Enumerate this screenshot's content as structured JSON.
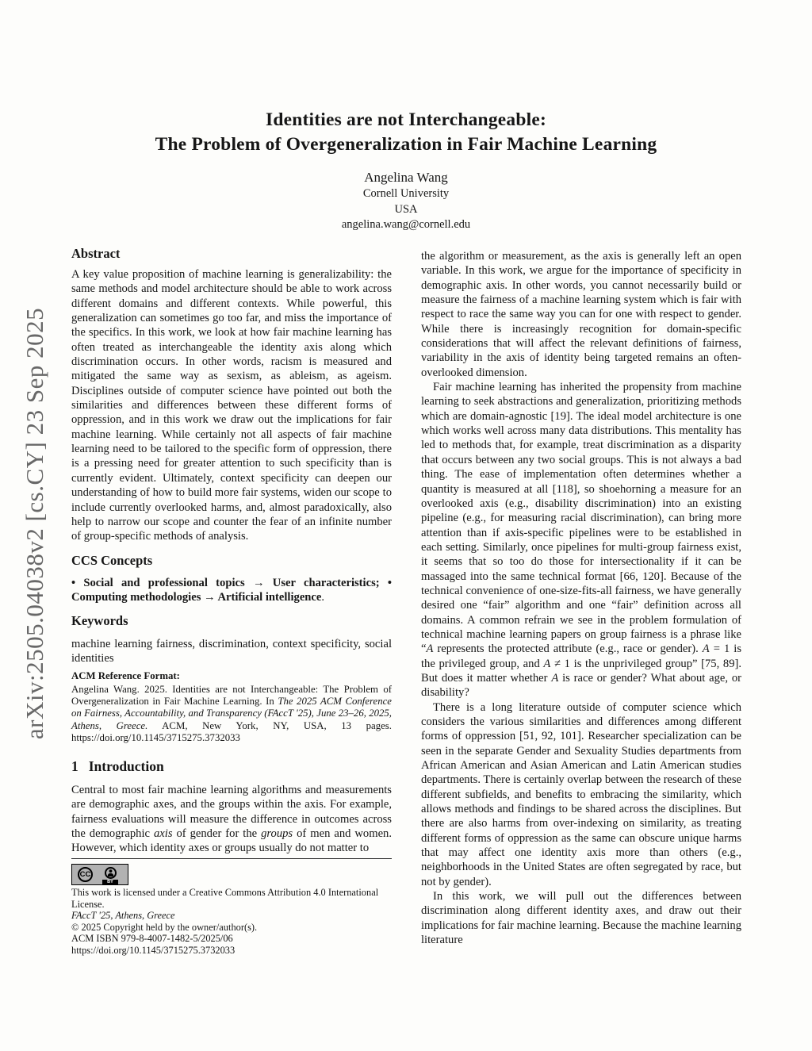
{
  "page": {
    "watermark": "arXiv:2505.04038v2  [cs.CY]  23 Sep 2025",
    "title_line1": "Identities are not Interchangeable:",
    "title_line2": "The Problem of Overgeneralization in Fair Machine Learning"
  },
  "author": {
    "name": "Angelina Wang",
    "affiliation": "Cornell University",
    "country": "USA",
    "email": "angelina.wang@cornell.edu"
  },
  "abstract": {
    "heading": "Abstract",
    "text": "A key value proposition of machine learning is generalizability: the same methods and model architecture should be able to work across different domains and different contexts. While powerful, this generalization can sometimes go too far, and miss the importance of the specifics. In this work, we look at how fair machine learning has often treated as interchangeable the identity axis along which discrimination occurs. In other words, racism is measured and mitigated the same way as sexism, as ableism, as ageism. Disciplines outside of computer science have pointed out both the similarities and differences between these different forms of oppression, and in this work we draw out the implications for fair machine learning. While certainly not all aspects of fair machine learning need to be tailored to the specific form of oppression, there is a pressing need for greater attention to such specificity than is currently evident. Ultimately, context specificity can deepen our understanding of how to build more fair systems, widen our scope to include currently overlooked harms, and, almost paradoxically, also help to narrow our scope and counter the fear of an infinite number of group-specific methods of analysis."
  },
  "ccs": {
    "heading": "CCS Concepts",
    "segments": [
      {
        "t": "• Social and professional topics → User characteristics; • Computing methodologies → Artificial intelligence",
        "b": true
      },
      {
        "t": "."
      }
    ]
  },
  "keywords": {
    "heading": "Keywords",
    "text": "machine learning fairness, discrimination, context specificity, social identities"
  },
  "acm_reference": {
    "heading": "ACM Reference Format:",
    "segments": [
      {
        "t": "Angelina Wang. 2025. Identities are not Interchangeable: The Problem of Overgeneralization in Fair Machine Learning. In "
      },
      {
        "t": "The 2025 ACM Conference on Fairness, Accountability, and Transparency (FAccT '25), June 23–26, 2025, Athens, Greece.",
        "i": true
      },
      {
        "t": " ACM, New York, NY, USA, 13 pages. https://doi.org/10.1145/3715275.3732033"
      }
    ]
  },
  "introduction": {
    "number": "1",
    "heading": "Introduction",
    "paragraph1_segments": [
      {
        "t": "Central to most fair machine learning algorithms and measurements are demographic axes, and the groups within the axis. For example, fairness evaluations will measure the difference in outcomes across the demographic "
      },
      {
        "t": "axis",
        "i": true
      },
      {
        "t": " of gender for the "
      },
      {
        "t": "groups",
        "i": true
      },
      {
        "t": " of men and women. However, which identity axes or groups usually do not matter to"
      }
    ]
  },
  "license": {
    "badge_label": "CC",
    "badge_by": "BY",
    "line1": "This work is licensed under a Creative Commons Attribution 4.0 International License.",
    "line2": "FAccT '25, Athens, Greece",
    "line3": "© 2025 Copyright held by the owner/author(s).",
    "line4": "ACM ISBN 979-8-4007-1482-5/2025/06",
    "line5": "https://doi.org/10.1145/3715275.3732033"
  },
  "right_column": {
    "paragraph1": "the algorithm or measurement, as the axis is generally left an open variable. In this work, we argue for the importance of specificity in demographic axis. In other words, you cannot necessarily build or measure the fairness of a machine learning system which is fair with respect to race the same way you can for one with respect to gender. While there is increasingly recognition for domain-specific considerations that will affect the relevant definitions of fairness, variability in the axis of identity being targeted remains an often-overlooked dimension.",
    "paragraph2_segments": [
      {
        "t": "Fair machine learning has inherited the propensity from machine learning to seek abstractions and generalization, prioritizing methods which are domain-agnostic [19]. The ideal model architecture is one which works well across many data distributions. This mentality has led to methods that, for example, treat discrimination as a disparity that occurs between any two social groups. This is not always a bad thing. The ease of implementation often determines whether a quantity is measured at all [118], so shoehorning a measure for an overlooked axis (e.g., disability discrimination) into an existing pipeline (e.g., for measuring racial discrimination), can bring more attention than if axis-specific pipelines were to be established in each setting. Similarly, once pipelines for multi-group fairness exist, it seems that so too do those for intersectionality if it can be massaged into the same technical format [66, 120]. Because of the technical convenience of one-size-fits-all fairness, we have generally desired one “fair” algorithm and one “fair” definition across all domains. A common refrain we see in the problem formulation of technical machine learning papers on group fairness is a phrase like “"
      },
      {
        "t": "A",
        "i": true
      },
      {
        "t": " represents the protected attribute (e.g., race or gender). "
      },
      {
        "t": "A",
        "i": true
      },
      {
        "t": " = 1 is the privileged group, and "
      },
      {
        "t": "A",
        "i": true
      },
      {
        "t": " ≠ 1 is the unprivileged group” [75, 89]. But does it matter whether "
      },
      {
        "t": "A",
        "i": true
      },
      {
        "t": " is race or gender? What about age, or disability?"
      }
    ],
    "paragraph3": "There is a long literature outside of computer science which considers the various similarities and differences among different forms of oppression [51, 92, 101]. Researcher specialization can be seen in the separate Gender and Sexuality Studies departments from African American and Asian American and Latin American studies departments. There is certainly overlap between the research of these different subfields, and benefits to embracing the similarity, which allows methods and findings to be shared across the disciplines. But there are also harms from over-indexing on similarity, as treating different forms of oppression as the same can obscure unique harms that may affect one identity axis more than others (e.g., neighborhoods in the United States are often segregated by race, but not by gender).",
    "paragraph4": "In this work, we will pull out the differences between discrimination along different identity axes, and draw out their implications for fair machine learning. Because the machine learning literature"
  }
}
